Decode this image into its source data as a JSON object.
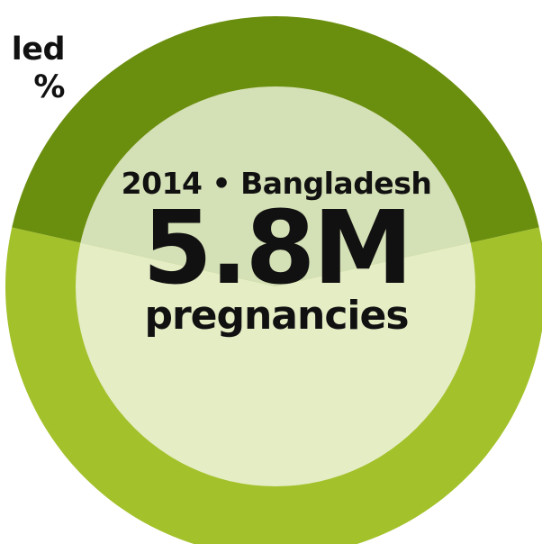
{
  "chart_data": {
    "type": "pie",
    "categories": [
      "",
      ""
    ],
    "values": [
      43,
      57
    ],
    "colors": [
      "#6a8e0e",
      "#a3c12a"
    ],
    "inner_colors": [
      "#d4e0b5",
      "#e5edc5"
    ],
    "title": "",
    "center_label": {
      "line1": "2014 • Bangladesh",
      "value": "5.8M",
      "unit": "pregnancies"
    },
    "side_label": {
      "line1": "led",
      "line2": "%"
    },
    "legend": "none"
  }
}
